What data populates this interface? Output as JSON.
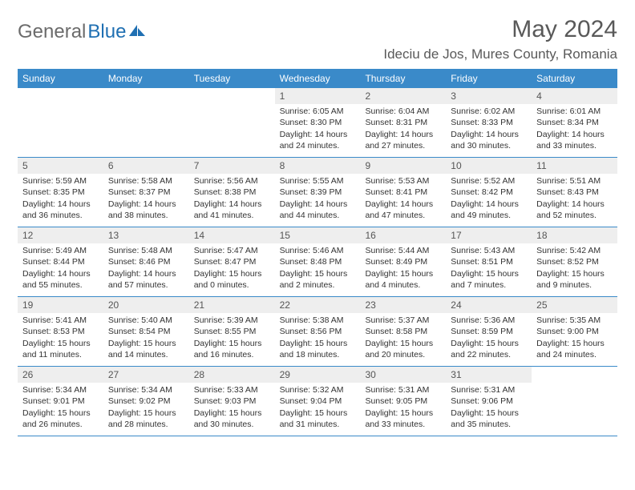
{
  "logo": {
    "text1": "General",
    "text2": "Blue"
  },
  "title": "May 2024",
  "location": "Ideciu de Jos, Mures County, Romania",
  "colors": {
    "header_bg": "#3a8ac9",
    "header_text": "#ffffff",
    "daynum_bg": "#eeeeee",
    "border": "#3a8ac9",
    "text": "#333333",
    "title_color": "#595959",
    "logo_gray": "#6b6b6b",
    "logo_blue": "#1f6fb2"
  },
  "day_names": [
    "Sunday",
    "Monday",
    "Tuesday",
    "Wednesday",
    "Thursday",
    "Friday",
    "Saturday"
  ],
  "weeks": [
    [
      {
        "n": "",
        "lines": []
      },
      {
        "n": "",
        "lines": []
      },
      {
        "n": "",
        "lines": []
      },
      {
        "n": "1",
        "lines": [
          "Sunrise: 6:05 AM",
          "Sunset: 8:30 PM",
          "Daylight: 14 hours and 24 minutes."
        ]
      },
      {
        "n": "2",
        "lines": [
          "Sunrise: 6:04 AM",
          "Sunset: 8:31 PM",
          "Daylight: 14 hours and 27 minutes."
        ]
      },
      {
        "n": "3",
        "lines": [
          "Sunrise: 6:02 AM",
          "Sunset: 8:33 PM",
          "Daylight: 14 hours and 30 minutes."
        ]
      },
      {
        "n": "4",
        "lines": [
          "Sunrise: 6:01 AM",
          "Sunset: 8:34 PM",
          "Daylight: 14 hours and 33 minutes."
        ]
      }
    ],
    [
      {
        "n": "5",
        "lines": [
          "Sunrise: 5:59 AM",
          "Sunset: 8:35 PM",
          "Daylight: 14 hours and 36 minutes."
        ]
      },
      {
        "n": "6",
        "lines": [
          "Sunrise: 5:58 AM",
          "Sunset: 8:37 PM",
          "Daylight: 14 hours and 38 minutes."
        ]
      },
      {
        "n": "7",
        "lines": [
          "Sunrise: 5:56 AM",
          "Sunset: 8:38 PM",
          "Daylight: 14 hours and 41 minutes."
        ]
      },
      {
        "n": "8",
        "lines": [
          "Sunrise: 5:55 AM",
          "Sunset: 8:39 PM",
          "Daylight: 14 hours and 44 minutes."
        ]
      },
      {
        "n": "9",
        "lines": [
          "Sunrise: 5:53 AM",
          "Sunset: 8:41 PM",
          "Daylight: 14 hours and 47 minutes."
        ]
      },
      {
        "n": "10",
        "lines": [
          "Sunrise: 5:52 AM",
          "Sunset: 8:42 PM",
          "Daylight: 14 hours and 49 minutes."
        ]
      },
      {
        "n": "11",
        "lines": [
          "Sunrise: 5:51 AM",
          "Sunset: 8:43 PM",
          "Daylight: 14 hours and 52 minutes."
        ]
      }
    ],
    [
      {
        "n": "12",
        "lines": [
          "Sunrise: 5:49 AM",
          "Sunset: 8:44 PM",
          "Daylight: 14 hours and 55 minutes."
        ]
      },
      {
        "n": "13",
        "lines": [
          "Sunrise: 5:48 AM",
          "Sunset: 8:46 PM",
          "Daylight: 14 hours and 57 minutes."
        ]
      },
      {
        "n": "14",
        "lines": [
          "Sunrise: 5:47 AM",
          "Sunset: 8:47 PM",
          "Daylight: 15 hours and 0 minutes."
        ]
      },
      {
        "n": "15",
        "lines": [
          "Sunrise: 5:46 AM",
          "Sunset: 8:48 PM",
          "Daylight: 15 hours and 2 minutes."
        ]
      },
      {
        "n": "16",
        "lines": [
          "Sunrise: 5:44 AM",
          "Sunset: 8:49 PM",
          "Daylight: 15 hours and 4 minutes."
        ]
      },
      {
        "n": "17",
        "lines": [
          "Sunrise: 5:43 AM",
          "Sunset: 8:51 PM",
          "Daylight: 15 hours and 7 minutes."
        ]
      },
      {
        "n": "18",
        "lines": [
          "Sunrise: 5:42 AM",
          "Sunset: 8:52 PM",
          "Daylight: 15 hours and 9 minutes."
        ]
      }
    ],
    [
      {
        "n": "19",
        "lines": [
          "Sunrise: 5:41 AM",
          "Sunset: 8:53 PM",
          "Daylight: 15 hours and 11 minutes."
        ]
      },
      {
        "n": "20",
        "lines": [
          "Sunrise: 5:40 AM",
          "Sunset: 8:54 PM",
          "Daylight: 15 hours and 14 minutes."
        ]
      },
      {
        "n": "21",
        "lines": [
          "Sunrise: 5:39 AM",
          "Sunset: 8:55 PM",
          "Daylight: 15 hours and 16 minutes."
        ]
      },
      {
        "n": "22",
        "lines": [
          "Sunrise: 5:38 AM",
          "Sunset: 8:56 PM",
          "Daylight: 15 hours and 18 minutes."
        ]
      },
      {
        "n": "23",
        "lines": [
          "Sunrise: 5:37 AM",
          "Sunset: 8:58 PM",
          "Daylight: 15 hours and 20 minutes."
        ]
      },
      {
        "n": "24",
        "lines": [
          "Sunrise: 5:36 AM",
          "Sunset: 8:59 PM",
          "Daylight: 15 hours and 22 minutes."
        ]
      },
      {
        "n": "25",
        "lines": [
          "Sunrise: 5:35 AM",
          "Sunset: 9:00 PM",
          "Daylight: 15 hours and 24 minutes."
        ]
      }
    ],
    [
      {
        "n": "26",
        "lines": [
          "Sunrise: 5:34 AM",
          "Sunset: 9:01 PM",
          "Daylight: 15 hours and 26 minutes."
        ]
      },
      {
        "n": "27",
        "lines": [
          "Sunrise: 5:34 AM",
          "Sunset: 9:02 PM",
          "Daylight: 15 hours and 28 minutes."
        ]
      },
      {
        "n": "28",
        "lines": [
          "Sunrise: 5:33 AM",
          "Sunset: 9:03 PM",
          "Daylight: 15 hours and 30 minutes."
        ]
      },
      {
        "n": "29",
        "lines": [
          "Sunrise: 5:32 AM",
          "Sunset: 9:04 PM",
          "Daylight: 15 hours and 31 minutes."
        ]
      },
      {
        "n": "30",
        "lines": [
          "Sunrise: 5:31 AM",
          "Sunset: 9:05 PM",
          "Daylight: 15 hours and 33 minutes."
        ]
      },
      {
        "n": "31",
        "lines": [
          "Sunrise: 5:31 AM",
          "Sunset: 9:06 PM",
          "Daylight: 15 hours and 35 minutes."
        ]
      },
      {
        "n": "",
        "lines": []
      }
    ]
  ]
}
